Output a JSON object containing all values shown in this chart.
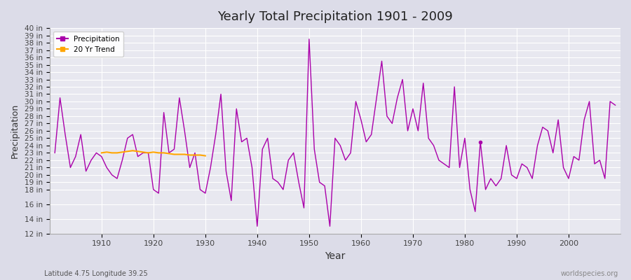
{
  "title": "Yearly Total Precipitation 1901 - 2009",
  "xlabel": "Year",
  "ylabel": "Precipitation",
  "subtitle": "Latitude 4.75 Longitude 39.25",
  "watermark": "worldspecies.org",
  "bg_color": "#e8e8f0",
  "plot_bg_color": "#e8e8f0",
  "line_color": "#aa00aa",
  "trend_color": "#ffa500",
  "ylim": [
    12,
    40
  ],
  "yticks": [
    12,
    14,
    16,
    18,
    19,
    20,
    21,
    22,
    23,
    24,
    25,
    26,
    27,
    28,
    29,
    30,
    31,
    32,
    33,
    34,
    35,
    36,
    37,
    38,
    39,
    40
  ],
  "ytick_labels": [
    "12 in",
    "14 in",
    "16 in",
    "18 in",
    "19 in",
    "20 in",
    "21 in",
    "22 in",
    "23 in",
    "24 in",
    "25 in",
    "26 in",
    "27 in",
    "28 in",
    "29 in",
    "30 in",
    "31 in",
    "32 in",
    "33 in",
    "34 in",
    "35 in",
    "36 in",
    "37 in",
    "38 in",
    "39 in",
    "40 in"
  ],
  "years": [
    1901,
    1902,
    1903,
    1904,
    1905,
    1906,
    1907,
    1908,
    1909,
    1910,
    1911,
    1912,
    1913,
    1914,
    1915,
    1916,
    1917,
    1918,
    1919,
    1920,
    1921,
    1922,
    1923,
    1924,
    1925,
    1926,
    1927,
    1928,
    1929,
    1930,
    1931,
    1932,
    1933,
    1934,
    1935,
    1936,
    1937,
    1938,
    1939,
    1940,
    1941,
    1942,
    1943,
    1944,
    1945,
    1946,
    1947,
    1948,
    1949,
    1950,
    1951,
    1952,
    1953,
    1954,
    1955,
    1956,
    1957,
    1958,
    1959,
    1960,
    1961,
    1962,
    1963,
    1964,
    1965,
    1966,
    1967,
    1968,
    1969,
    1970,
    1971,
    1972,
    1973,
    1974,
    1975,
    1976,
    1977,
    1978,
    1979,
    1980,
    1981,
    1982,
    1983,
    1984,
    1985,
    1986,
    1987,
    1988,
    1989,
    1990,
    1991,
    1992,
    1993,
    1994,
    1995,
    1996,
    1997,
    1998,
    1999,
    2000,
    2001,
    2002,
    2003,
    2004,
    2005,
    2006,
    2007,
    2008,
    2009
  ],
  "precip": [
    23.0,
    30.5,
    25.5,
    21.0,
    22.5,
    25.5,
    20.5,
    22.0,
    23.0,
    22.5,
    21.0,
    20.0,
    19.5,
    22.0,
    25.0,
    25.5,
    22.5,
    23.0,
    23.0,
    18.0,
    17.5,
    28.5,
    23.0,
    23.5,
    30.5,
    26.0,
    21.0,
    23.0,
    18.0,
    17.5,
    21.0,
    25.5,
    31.0,
    20.5,
    16.5,
    29.0,
    24.5,
    25.0,
    21.0,
    13.0,
    23.5,
    25.0,
    19.5,
    19.0,
    18.0,
    22.0,
    23.0,
    19.0,
    15.5,
    38.5,
    23.5,
    19.0,
    18.5,
    13.0,
    25.0,
    24.0,
    22.0,
    23.0,
    30.0,
    27.5,
    24.5,
    25.5,
    30.5,
    35.5,
    28.0,
    27.0,
    30.5,
    33.0,
    26.0,
    29.0,
    26.0,
    32.5,
    25.0,
    24.0,
    22.0,
    21.5,
    21.0,
    32.0,
    21.0,
    25.0,
    18.0,
    15.0,
    24.5,
    18.0,
    19.5,
    18.5,
    19.5,
    24.0,
    20.0,
    19.5,
    21.5,
    21.0,
    19.5,
    24.0,
    26.5,
    26.0,
    23.0,
    27.5,
    21.0,
    19.5,
    22.5,
    22.0,
    27.5,
    30.0,
    21.5,
    22.0,
    19.5,
    30.0,
    29.5
  ],
  "trend_years": [
    1910,
    1911,
    1912,
    1913,
    1914,
    1915,
    1916,
    1917,
    1918,
    1919,
    1920,
    1921,
    1922,
    1923,
    1924,
    1925,
    1926,
    1927,
    1928,
    1929,
    1930
  ],
  "trend_values": [
    23.0,
    23.1,
    23.0,
    23.0,
    23.1,
    23.2,
    23.3,
    23.2,
    23.1,
    23.0,
    23.1,
    23.0,
    23.0,
    22.9,
    22.8,
    22.8,
    22.8,
    22.7,
    22.7,
    22.7,
    22.6
  ],
  "isolated_point_year": 1983,
  "isolated_point_value": 24.5
}
